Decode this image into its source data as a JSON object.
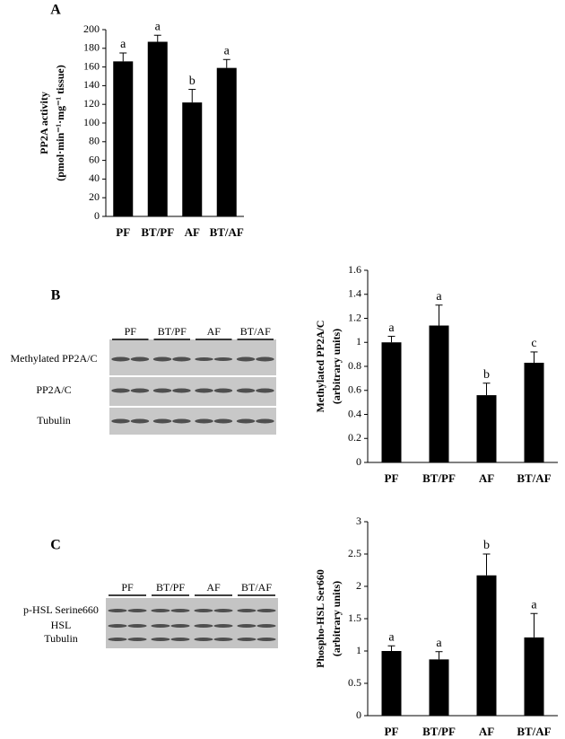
{
  "chart_data": [
    {
      "type": "bar",
      "panel_label": "A",
      "ylabel": [
        "PP2A activity",
        "(pmol·min⁻¹·mg⁻¹ tissue)"
      ],
      "categories": [
        "PF",
        "BT/PF",
        "AF",
        "BT/AF"
      ],
      "values": [
        166,
        187,
        122,
        159
      ],
      "errors": [
        9,
        7,
        14,
        9
      ],
      "annotations": [
        "a",
        "a",
        "b",
        "a"
      ],
      "color": "#000000",
      "ylim": [
        0,
        200
      ],
      "yticks": [
        0,
        20,
        40,
        60,
        80,
        100,
        120,
        140,
        160,
        180,
        200
      ]
    },
    {
      "type": "bar",
      "panel_label": "B",
      "ylabel": [
        "Methylated PP2A/C",
        "(arbitrary units)"
      ],
      "categories": [
        "PF",
        "BT/PF",
        "AF",
        "BT/AF"
      ],
      "values": [
        1.0,
        1.14,
        0.56,
        0.83
      ],
      "errors": [
        0.05,
        0.17,
        0.1,
        0.09
      ],
      "annotations": [
        "a",
        "a",
        "b",
        "c"
      ],
      "color": "#000000",
      "ylim": [
        0,
        1.6
      ],
      "yticks": [
        0,
        0.2,
        0.4,
        0.6,
        0.8,
        1,
        1.2,
        1.4,
        1.6
      ]
    },
    {
      "type": "bar",
      "panel_label": "C",
      "ylabel": [
        "Phospho-HSL Ser660",
        "(arbitrary units)"
      ],
      "categories": [
        "PF",
        "BT/PF",
        "AF",
        "BT/AF"
      ],
      "values": [
        1.0,
        0.87,
        2.17,
        1.21
      ],
      "errors": [
        0.08,
        0.12,
        0.33,
        0.37
      ],
      "annotations": [
        "a",
        "a",
        "b",
        "a"
      ],
      "color": "#000000",
      "ylim": [
        0,
        3
      ],
      "yticks": [
        0,
        0.5,
        1,
        1.5,
        2,
        2.5,
        3
      ]
    }
  ],
  "blots": [
    {
      "lanes": [
        "PF",
        "BT/PF",
        "AF",
        "BT/AF"
      ],
      "rows": [
        "Methylated PP2A/C",
        "PP2A/C",
        "Tubulin"
      ]
    },
    {
      "lanes": [
        "PF",
        "BT/PF",
        "AF",
        "BT/AF"
      ],
      "rows": [
        "p-HSL Serine660",
        "HSL",
        "Tubulin"
      ]
    }
  ]
}
